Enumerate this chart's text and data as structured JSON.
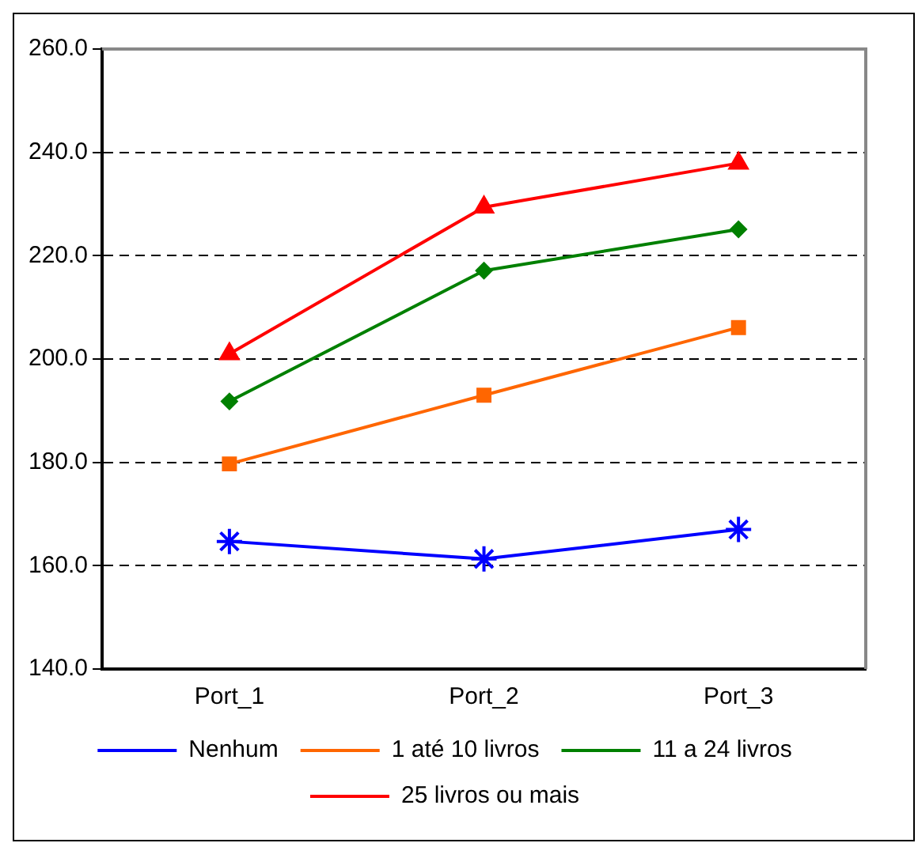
{
  "chart_data": {
    "type": "line",
    "categories": [
      "Port_1",
      "Port_2",
      "Port_3"
    ],
    "series": [
      {
        "name": "Nenhum",
        "color": "#0000ff",
        "marker": "cross",
        "values": [
          164.7,
          161.3,
          167.0
        ]
      },
      {
        "name": "1 até 10 livros",
        "color": "#ff6600",
        "marker": "square",
        "values": [
          179.7,
          193.0,
          206.1
        ]
      },
      {
        "name": "11 a 24 livros",
        "color": "#008000",
        "marker": "diamond",
        "values": [
          191.8,
          217.1,
          225.1
        ]
      },
      {
        "name": "25 livros ou mais",
        "color": "#ff0000",
        "marker": "triangle",
        "values": [
          201.0,
          229.4,
          237.9
        ]
      }
    ],
    "ylim": [
      140,
      260
    ],
    "yticks": [
      {
        "value": 140,
        "label": "140.0"
      },
      {
        "value": 160,
        "label": "160.0"
      },
      {
        "value": 180,
        "label": "180.0"
      },
      {
        "value": 200,
        "label": "200.0"
      },
      {
        "value": 220,
        "label": "220.0"
      },
      {
        "value": 240,
        "label": "240.0"
      },
      {
        "value": 260,
        "label": "260.0"
      }
    ],
    "grid": "y",
    "line_style": "solid",
    "legend": "bottom"
  }
}
